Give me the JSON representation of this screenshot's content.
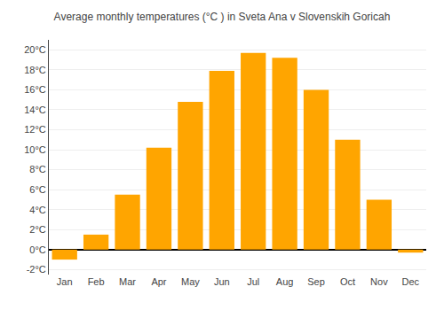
{
  "chart_data": {
    "type": "bar",
    "title": "Average monthly temperatures (°C ) in Sveta Ana v Slovenskih Goricah",
    "categories": [
      "Jan",
      "Feb",
      "Mar",
      "Apr",
      "May",
      "Jun",
      "Jul",
      "Aug",
      "Sep",
      "Oct",
      "Nov",
      "Dec"
    ],
    "values": [
      -1.0,
      1.5,
      5.5,
      10.2,
      14.8,
      17.9,
      19.7,
      19.2,
      16.0,
      11.0,
      5.0,
      -0.3
    ],
    "color": "#FFA500",
    "ylim": [
      -2.5,
      21.0
    ],
    "yticks": [
      {
        "value": -2,
        "label": "-2°C"
      },
      {
        "value": 0,
        "label": "0°C"
      },
      {
        "value": 2,
        "label": "2°C"
      },
      {
        "value": 4,
        "label": "4°C"
      },
      {
        "value": 6,
        "label": "6°C"
      },
      {
        "value": 8,
        "label": "8°C"
      },
      {
        "value": 10,
        "label": "10°C"
      },
      {
        "value": 12,
        "label": "12°C"
      },
      {
        "value": 14,
        "label": "14°C"
      },
      {
        "value": 16,
        "label": "16°C"
      },
      {
        "value": 18,
        "label": "18°C"
      },
      {
        "value": 20,
        "label": "20°C"
      }
    ],
    "grid": true
  }
}
